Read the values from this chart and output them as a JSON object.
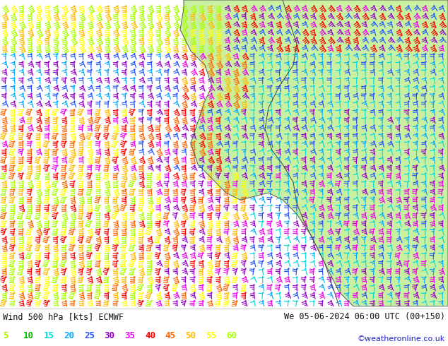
{
  "title_left": "Wind 500 hPa [kts] ECMWF",
  "title_right": "We 05-06-2024 06:00 UTC (00+150)",
  "copyright": "©weatheronline.co.uk",
  "legend_labels": [
    "5",
    "10",
    "15",
    "20",
    "25",
    "30",
    "35",
    "40",
    "45",
    "50",
    "55",
    "60"
  ],
  "legend_colors": [
    "#aaee00",
    "#00bb00",
    "#00dddd",
    "#00aaff",
    "#2255ff",
    "#9900cc",
    "#ee00ee",
    "#ff0000",
    "#ff6600",
    "#ffbb00",
    "#ffff00",
    "#aaff00"
  ],
  "sea_color": "#f0f0ee",
  "land_color": "#c8f0a0",
  "bottom_bg": "#ffffff",
  "border_color": "#333333",
  "fig_width": 6.34,
  "fig_height": 4.9,
  "dpi": 100,
  "speed_bins": [
    5,
    10,
    15,
    20,
    25,
    30,
    35,
    40,
    45,
    50,
    55,
    60
  ]
}
